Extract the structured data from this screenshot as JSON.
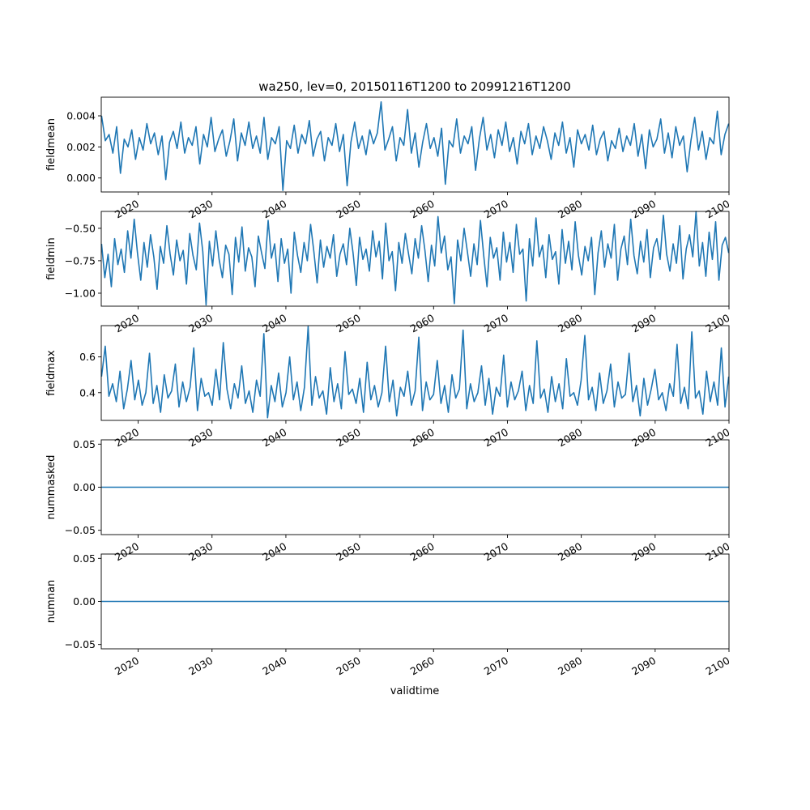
{
  "figure": {
    "title": "wa250, lev=0, 20150116T1200 to 20991216T1200",
    "xlabel": "validtime"
  },
  "chart_data": [
    {
      "type": "line",
      "ylabel": "fieldmean",
      "xlim": [
        2015,
        2100
      ],
      "ylim": [
        -0.0009,
        0.0052
      ],
      "x_ticks": [
        "2020",
        "2030",
        "2040",
        "2050",
        "2060",
        "2070",
        "2080",
        "2090",
        "2100"
      ],
      "y_ticks": [
        "0.000",
        "0.002",
        "0.004"
      ],
      "y_tick_values": [
        0.0,
        0.002,
        0.004
      ],
      "series": [
        {
          "color": "#1f77b4",
          "x_start": 2015.04,
          "x_end": 2099.96,
          "values": [
            0.004,
            0.0024,
            0.0028,
            0.0016,
            0.0033,
            0.0003,
            0.0025,
            0.002,
            0.0031,
            0.0012,
            0.0026,
            0.0018,
            0.0035,
            0.0022,
            0.0029,
            0.0015,
            0.0027,
            -0.0001,
            0.0023,
            0.003,
            0.0019,
            0.0036,
            0.0016,
            0.0026,
            0.0021,
            0.0033,
            0.0009,
            0.0028,
            0.002,
            0.0039,
            0.0017,
            0.0025,
            0.0031,
            0.0014,
            0.0024,
            0.0038,
            0.0011,
            0.0029,
            0.0021,
            0.0036,
            0.0019,
            0.0027,
            0.0016,
            0.0039,
            0.0012,
            0.0026,
            0.0022,
            0.0033,
            -0.0008,
            0.0024,
            0.0019,
            0.0034,
            0.0016,
            0.0028,
            0.0022,
            0.0037,
            0.0014,
            0.0025,
            0.003,
            0.0011,
            0.0026,
            0.0021,
            0.0035,
            0.0017,
            0.0028,
            -0.0005,
            0.0023,
            0.0036,
            0.0019,
            0.0027,
            0.0015,
            0.0031,
            0.0022,
            0.0029,
            0.0049,
            0.0018,
            0.0025,
            0.0033,
            0.0011,
            0.0026,
            0.0021,
            0.0044,
            0.0016,
            0.0029,
            0.0007,
            0.0023,
            0.0035,
            0.0019,
            0.0026,
            0.0014,
            0.0032,
            -0.0004,
            0.0024,
            0.002,
            0.0038,
            0.0016,
            0.0027,
            0.0022,
            0.0033,
            0.0005,
            0.0025,
            0.0039,
            0.0018,
            0.0028,
            0.0013,
            0.0031,
            0.0021,
            0.0036,
            0.0017,
            0.0026,
            0.0009,
            0.003,
            0.0022,
            0.0035,
            0.0015,
            0.0027,
            0.0019,
            0.0033,
            0.0024,
            0.0012,
            0.0029,
            0.0021,
            0.0036,
            0.0016,
            0.0026,
            0.0007,
            0.0031,
            0.0022,
            0.0028,
            0.0018,
            0.0034,
            0.0015,
            0.0025,
            0.003,
            0.0011,
            0.0024,
            0.0019,
            0.0032,
            0.0017,
            0.0027,
            0.0021,
            0.0035,
            0.0014,
            0.0028,
            0.0006,
            0.0031,
            0.002,
            0.0025,
            0.0038,
            0.0016,
            0.0029,
            0.0013,
            0.0033,
            0.0021,
            0.0027,
            0.0004,
            0.0024,
            0.0039,
            0.0018,
            0.003,
            0.0012,
            0.0026,
            0.0022,
            0.0043,
            0.0015,
            0.0028,
            0.0035
          ]
        }
      ]
    },
    {
      "type": "line",
      "ylabel": "fieldmin",
      "xlim": [
        2015,
        2100
      ],
      "ylim": [
        -1.1,
        -0.37
      ],
      "x_ticks": [
        "2020",
        "2030",
        "2040",
        "2050",
        "2060",
        "2070",
        "2080",
        "2090",
        "2100"
      ],
      "y_ticks": [
        "−1.00",
        "−0.75",
        "−0.50"
      ],
      "y_tick_values": [
        -1.0,
        -0.75,
        -0.5
      ],
      "series": [
        {
          "color": "#1f77b4",
          "x_start": 2015.04,
          "x_end": 2099.96,
          "values": [
            -0.62,
            -0.88,
            -0.7,
            -0.95,
            -0.58,
            -0.78,
            -0.66,
            -0.84,
            -0.52,
            -0.73,
            -0.43,
            -0.69,
            -0.9,
            -0.61,
            -0.8,
            -0.55,
            -0.72,
            -0.97,
            -0.64,
            -0.77,
            -0.48,
            -0.7,
            -0.86,
            -0.59,
            -0.75,
            -0.67,
            -0.93,
            -0.54,
            -0.71,
            -0.82,
            -0.46,
            -0.68,
            -1.09,
            -0.6,
            -0.79,
            -0.52,
            -0.74,
            -0.88,
            -0.63,
            -0.7,
            -1.01,
            -0.57,
            -0.76,
            -0.49,
            -0.83,
            -0.65,
            -0.72,
            -0.95,
            -0.56,
            -0.69,
            -0.81,
            -0.44,
            -0.73,
            -0.62,
            -0.91,
            -0.58,
            -0.77,
            -0.66,
            -1.0,
            -0.53,
            -0.71,
            -0.84,
            -0.61,
            -0.75,
            -0.47,
            -0.68,
            -0.92,
            -0.59,
            -0.8,
            -0.64,
            -0.73,
            -0.55,
            -0.87,
            -0.7,
            -0.62,
            -0.78,
            -0.5,
            -0.69,
            -0.94,
            -0.57,
            -0.74,
            -0.66,
            -0.83,
            -0.52,
            -0.72,
            -0.6,
            -0.89,
            -0.46,
            -0.75,
            -0.68,
            -0.98,
            -0.61,
            -0.77,
            -0.54,
            -0.7,
            -0.85,
            -0.58,
            -0.73,
            -0.48,
            -0.67,
            -0.91,
            -0.63,
            -0.79,
            -0.41,
            -0.69,
            -0.56,
            -0.82,
            -0.72,
            -1.08,
            -0.59,
            -0.75,
            -0.5,
            -0.68,
            -0.87,
            -0.62,
            -0.78,
            -0.44,
            -0.71,
            -0.95,
            -0.57,
            -0.73,
            -0.65,
            -0.9,
            -0.53,
            -0.76,
            -0.61,
            -0.84,
            -0.47,
            -0.7,
            -0.66,
            -1.06,
            -0.58,
            -0.79,
            -0.42,
            -0.72,
            -0.63,
            -0.88,
            -0.55,
            -0.74,
            -0.68,
            -0.93,
            -0.51,
            -0.77,
            -0.6,
            -0.82,
            -0.45,
            -0.71,
            -0.86,
            -0.64,
            -0.75,
            -0.57,
            -1.01,
            -0.69,
            -0.52,
            -0.8,
            -0.62,
            -0.73,
            -0.47,
            -0.9,
            -0.66,
            -0.56,
            -0.78,
            -0.43,
            -0.71,
            -0.85,
            -0.6,
            -0.76,
            -0.51,
            -0.88,
            -0.65,
            -0.58,
            -0.74,
            -0.4,
            -0.7,
            -0.83,
            -0.62,
            -0.77,
            -0.48,
            -0.89,
            -0.66,
            -0.55,
            -0.72,
            -0.37,
            -0.79,
            -0.61,
            -0.87,
            -0.53,
            -0.74,
            -0.45,
            -0.9,
            -0.63,
            -0.57,
            -0.69
          ]
        }
      ]
    },
    {
      "type": "line",
      "ylabel": "fieldmax",
      "xlim": [
        2015,
        2100
      ],
      "ylim": [
        0.245,
        0.775
      ],
      "x_ticks": [
        "2020",
        "2030",
        "2040",
        "2050",
        "2060",
        "2070",
        "2080",
        "2090",
        "2100"
      ],
      "y_ticks": [
        "0.4",
        "0.6"
      ],
      "y_tick_values": [
        0.4,
        0.6
      ],
      "series": [
        {
          "color": "#1f77b4",
          "x_start": 2015.04,
          "x_end": 2099.96,
          "values": [
            0.49,
            0.66,
            0.38,
            0.45,
            0.35,
            0.52,
            0.31,
            0.42,
            0.58,
            0.36,
            0.47,
            0.33,
            0.4,
            0.62,
            0.34,
            0.44,
            0.29,
            0.5,
            0.37,
            0.41,
            0.56,
            0.32,
            0.46,
            0.35,
            0.43,
            0.65,
            0.3,
            0.48,
            0.38,
            0.4,
            0.33,
            0.53,
            0.36,
            0.68,
            0.42,
            0.31,
            0.45,
            0.37,
            0.55,
            0.34,
            0.41,
            0.29,
            0.47,
            0.38,
            0.73,
            0.26,
            0.44,
            0.35,
            0.51,
            0.32,
            0.4,
            0.6,
            0.36,
            0.46,
            0.3,
            0.43,
            0.77,
            0.33,
            0.49,
            0.37,
            0.41,
            0.28,
            0.54,
            0.35,
            0.45,
            0.31,
            0.63,
            0.39,
            0.42,
            0.34,
            0.48,
            0.29,
            0.57,
            0.36,
            0.44,
            0.32,
            0.4,
            0.66,
            0.35,
            0.47,
            0.27,
            0.43,
            0.38,
            0.52,
            0.33,
            0.41,
            0.71,
            0.3,
            0.46,
            0.36,
            0.39,
            0.58,
            0.34,
            0.44,
            0.29,
            0.5,
            0.37,
            0.42,
            0.75,
            0.31,
            0.45,
            0.35,
            0.4,
            0.55,
            0.33,
            0.48,
            0.28,
            0.43,
            0.38,
            0.61,
            0.32,
            0.46,
            0.36,
            0.41,
            0.52,
            0.3,
            0.44,
            0.34,
            0.69,
            0.37,
            0.42,
            0.29,
            0.49,
            0.35,
            0.45,
            0.31,
            0.59,
            0.38,
            0.4,
            0.33,
            0.47,
            0.72,
            0.36,
            0.43,
            0.3,
            0.51,
            0.34,
            0.41,
            0.56,
            0.32,
            0.46,
            0.37,
            0.39,
            0.62,
            0.35,
            0.44,
            0.27,
            0.48,
            0.33,
            0.42,
            0.53,
            0.36,
            0.4,
            0.3,
            0.45,
            0.38,
            0.67,
            0.34,
            0.43,
            0.31,
            0.74,
            0.37,
            0.41,
            0.28,
            0.52,
            0.35,
            0.46,
            0.33,
            0.65,
            0.32,
            0.49
          ]
        }
      ]
    },
    {
      "type": "line",
      "ylabel": "nummasked",
      "xlim": [
        2015,
        2100
      ],
      "ylim": [
        -0.055,
        0.055
      ],
      "x_ticks": [
        "2020",
        "2030",
        "2040",
        "2050",
        "2060",
        "2070",
        "2080",
        "2090",
        "2100"
      ],
      "y_ticks": [
        "−0.05",
        "0.00",
        "0.05"
      ],
      "y_tick_values": [
        -0.05,
        0.0,
        0.05
      ],
      "series": [
        {
          "color": "#1f77b4",
          "x_start": 2015.04,
          "x_end": 2099.96,
          "values": [
            0,
            0
          ]
        }
      ]
    },
    {
      "type": "line",
      "ylabel": "numnan",
      "xlim": [
        2015,
        2100
      ],
      "ylim": [
        -0.055,
        0.055
      ],
      "x_ticks": [
        "2020",
        "2030",
        "2040",
        "2050",
        "2060",
        "2070",
        "2080",
        "2090",
        "2100"
      ],
      "y_ticks": [
        "−0.05",
        "0.00",
        "0.05"
      ],
      "y_tick_values": [
        -0.05,
        0.0,
        0.05
      ],
      "series": [
        {
          "color": "#1f77b4",
          "x_start": 2015.04,
          "x_end": 2099.96,
          "values": [
            0,
            0
          ]
        }
      ]
    }
  ]
}
